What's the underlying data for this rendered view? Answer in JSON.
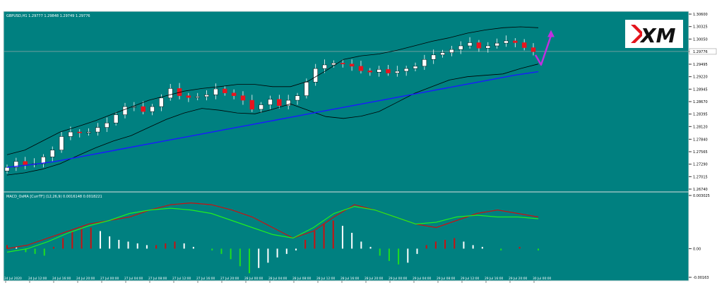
{
  "colors": {
    "background": "#008080",
    "price_axis_bg": "#ffffff",
    "grid_border": "#e0e0e0",
    "bull_candle": "#ffffff",
    "bear_candle": "#e8141e",
    "bollinger": "#000000",
    "ma": "#1a1aff",
    "arrow": "#c030e0",
    "macd_signal_red": "#cc1010",
    "macd_signal_green": "#20ee20",
    "hist_up": "#cc1010",
    "hist_up_weak": "#ffffff",
    "hist_down": "#20dd20"
  },
  "chart_data": {
    "type": "candlestick",
    "symbol_info": "GBPUSD,H1  1.29777 1.29848 1.29749 1.29776",
    "indicator_info": "MACD_OsMA [CurrTF] (12,26,9) 0.0016148 0.0018221",
    "price_ticks": [
      "1.30600",
      "1.30325",
      "1.30050",
      "1.29775",
      "1.29495",
      "1.29220",
      "1.28945",
      "1.28670",
      "1.28395",
      "1.28120",
      "1.27840",
      "1.27565",
      "1.27290",
      "1.27015",
      "1.26740"
    ],
    "current_price_label": "1.29776",
    "macd_ticks": [
      "0.003025",
      "0.00",
      "-0.00163"
    ],
    "x_ticks": [
      "24 Jul 2020",
      "24 Jul 12:00",
      "24 Jul 16:00",
      "24 Jul 20:00",
      "27 Jul 00:00",
      "27 Jul 04:00",
      "27 Jul 08:00",
      "27 Jul 12:00",
      "27 Jul 16:00",
      "27 Jul 20:00",
      "28 Jul 00:00",
      "28 Jul 04:00",
      "28 Jul 08:00",
      "28 Jul 12:00",
      "28 Jul 16:00",
      "28 Jul 20:00",
      "29 Jul 00:00",
      "29 Jul 04:00",
      "29 Jul 08:00",
      "29 Jul 12:00",
      "29 Jul 16:00",
      "29 Jul 20:00",
      "30 Jul 00:00"
    ],
    "ylim": [
      1.2674,
      1.306
    ],
    "macd_ylim": [
      -0.00163,
      0.003025
    ],
    "close_path": [
      1.2722,
      1.2735,
      1.2728,
      1.273,
      1.2745,
      1.276,
      1.279,
      1.28,
      1.2798,
      1.28,
      1.281,
      1.282,
      1.2838,
      1.2856,
      1.2856,
      1.2845,
      1.2856,
      1.2875,
      1.2896,
      1.288,
      1.2876,
      1.2878,
      1.2882,
      1.2895,
      1.2886,
      1.288,
      1.287,
      1.285,
      1.286,
      1.2872,
      1.2858,
      1.287,
      1.288,
      1.291,
      1.294,
      1.2948,
      1.2952,
      1.295,
      1.2945,
      1.2935,
      1.2932,
      1.2938,
      1.293,
      1.2934,
      1.294,
      1.2945,
      1.296,
      1.297,
      1.2975,
      1.2982,
      1.299,
      1.2997,
      1.2985,
      1.299,
      1.2996,
      1.3001,
      1.2997,
      1.2986,
      1.2977
    ],
    "bb_upper": [
      1.275,
      1.276,
      1.278,
      1.28,
      1.2812,
      1.2825,
      1.284,
      1.2855,
      1.287,
      1.288,
      1.289,
      1.2896,
      1.29,
      1.2905,
      1.2905,
      1.29,
      1.29,
      1.2912,
      1.2935,
      1.296,
      1.2968,
      1.2972,
      1.298,
      1.299,
      1.3,
      1.3008,
      1.3018,
      1.3025,
      1.303,
      1.3032,
      1.303
    ],
    "bb_lower": [
      1.2705,
      1.271,
      1.2718,
      1.273,
      1.2748,
      1.2765,
      1.278,
      1.2792,
      1.281,
      1.2828,
      1.2842,
      1.2852,
      1.2848,
      1.2842,
      1.284,
      1.285,
      1.2862,
      1.2848,
      1.2834,
      1.283,
      1.2835,
      1.2845,
      1.2865,
      1.2885,
      1.29,
      1.2915,
      1.2922,
      1.2925,
      1.2928,
      1.294,
      1.295
    ],
    "ma_line": [
      1.2722,
      1.2728,
      1.2735,
      1.2745,
      1.2755,
      1.2765,
      1.2775,
      1.2785,
      1.2795,
      1.2805,
      1.2815,
      1.2825,
      1.2835,
      1.2845,
      1.2855,
      1.2865,
      1.2875,
      1.2885,
      1.2895,
      1.2905,
      1.2915,
      1.2925,
      1.2933
    ],
    "macd_red": [
      0.0,
      0.0002,
      0.0006,
      0.001,
      0.0014,
      0.0016,
      0.0018,
      0.0022,
      0.0025,
      0.0026,
      0.0025,
      0.0022,
      0.0018,
      0.0012,
      0.0006,
      0.001,
      0.0018,
      0.0025,
      0.0022,
      0.0018,
      0.0014,
      0.0012,
      0.0016,
      0.002,
      0.0022,
      0.002,
      0.0018
    ],
    "macd_green": [
      -0.0002,
      0.0,
      0.0004,
      0.0009,
      0.0013,
      0.0016,
      0.002,
      0.0022,
      0.0023,
      0.0022,
      0.002,
      0.0016,
      0.0012,
      0.0008,
      0.0006,
      0.0012,
      0.002,
      0.0024,
      0.0022,
      0.0018,
      0.0014,
      0.0015,
      0.0018,
      0.0019,
      0.0018,
      0.0018,
      0.0017
    ],
    "macd_hist": [
      0.0002,
      0.0001,
      -0.0002,
      -0.0003,
      -0.0004,
      0.0001,
      0.0006,
      0.001,
      0.0012,
      0.0012,
      0.001,
      0.0007,
      0.0005,
      0.0004,
      0.0003,
      0.0002,
      0.0002,
      0.0003,
      0.0004,
      0.0003,
      0.0001,
      0.0,
      -0.0001,
      -0.0003,
      -0.0006,
      -0.001,
      -0.0014,
      -0.0011,
      -0.0008,
      -0.0005,
      -0.0003,
      -0.0001,
      0.0005,
      0.001,
      0.0014,
      0.0016,
      0.0013,
      0.0009,
      0.0004,
      0.0001,
      -0.0004,
      -0.0007,
      -0.0009,
      -0.0008,
      -0.0003,
      0.0002,
      0.0004,
      0.0005,
      0.0006,
      0.0004,
      0.0002,
      0.0001,
      0.0,
      -0.0001,
      0.0,
      0.0001,
      0.0,
      -0.0001
    ],
    "arrow": {
      "from": 1.297,
      "to": 1.3025
    }
  },
  "logo": {
    "text": "XM"
  }
}
